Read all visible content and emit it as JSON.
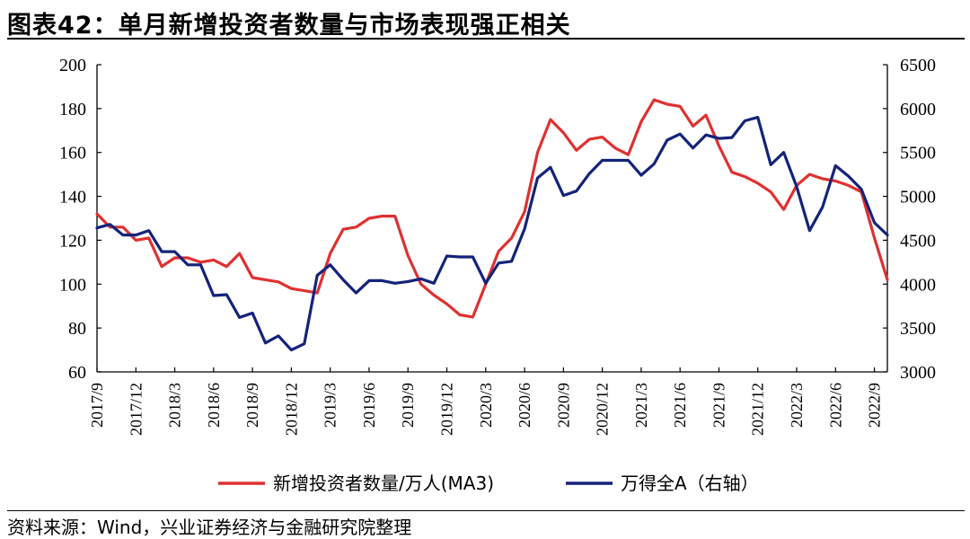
{
  "header": {
    "title": "图表42：单月新增投资者数量与市场表现强正相关"
  },
  "footer": {
    "source": "资料来源：Wind，兴业证券经济与金融研究院整理"
  },
  "chart_data": {
    "type": "line",
    "x": [
      "2017/9",
      "2017/10",
      "2017/11",
      "2017/12",
      "2018/1",
      "2018/2",
      "2018/3",
      "2018/4",
      "2018/5",
      "2018/6",
      "2018/7",
      "2018/8",
      "2018/9",
      "2018/10",
      "2018/11",
      "2018/12",
      "2019/1",
      "2019/2",
      "2019/3",
      "2019/4",
      "2019/5",
      "2019/6",
      "2019/7",
      "2019/8",
      "2019/9",
      "2019/10",
      "2019/11",
      "2019/12",
      "2020/1",
      "2020/2",
      "2020/3",
      "2020/4",
      "2020/5",
      "2020/6",
      "2020/7",
      "2020/8",
      "2020/9",
      "2020/10",
      "2020/11",
      "2020/12",
      "2021/1",
      "2021/2",
      "2021/3",
      "2021/4",
      "2021/5",
      "2021/6",
      "2021/7",
      "2021/8",
      "2021/9",
      "2021/10",
      "2021/11",
      "2021/12",
      "2022/1",
      "2022/2",
      "2022/3",
      "2022/4",
      "2022/5",
      "2022/6",
      "2022/7",
      "2022/8",
      "2022/9",
      "2022/10"
    ],
    "xticks": [
      "2017/9",
      "2017/12",
      "2018/3",
      "2018/6",
      "2018/9",
      "2018/12",
      "2019/3",
      "2019/6",
      "2019/9",
      "2019/12",
      "2020/3",
      "2020/6",
      "2020/9",
      "2020/12",
      "2021/3",
      "2021/6",
      "2021/9",
      "2021/12",
      "2022/3",
      "2022/6",
      "2022/9"
    ],
    "series": [
      {
        "name": "新增投资者数量/万人(MA3)",
        "axis": "left",
        "color": "#e03030",
        "values": [
          132,
          126,
          126,
          120,
          121,
          108,
          112,
          112,
          110,
          111,
          108,
          114,
          103,
          102,
          101,
          98,
          97,
          96,
          114,
          125,
          126,
          130,
          131,
          131,
          113,
          100,
          95,
          91,
          86,
          85,
          100,
          115,
          121,
          133,
          160,
          175,
          169,
          161,
          166,
          167,
          162,
          159,
          174,
          184,
          182,
          181,
          172,
          177,
          163,
          151,
          149,
          146,
          142,
          134,
          145,
          150,
          148,
          147,
          145,
          142,
          121,
          102
        ]
      },
      {
        "name": "万得全A（右轴）",
        "axis": "right",
        "color": "#14237a",
        "values": [
          4640,
          4680,
          4560,
          4560,
          4610,
          4370,
          4370,
          4220,
          4220,
          3870,
          3880,
          3620,
          3670,
          3330,
          3410,
          3250,
          3320,
          4100,
          4220,
          4050,
          3900,
          4040,
          4040,
          4010,
          4030,
          4060,
          4010,
          4320,
          4310,
          4310,
          4010,
          4240,
          4260,
          4630,
          5210,
          5330,
          5010,
          5060,
          5260,
          5410,
          5410,
          5410,
          5240,
          5370,
          5640,
          5710,
          5550,
          5700,
          5660,
          5670,
          5860,
          5900,
          5360,
          5500,
          5110,
          4610,
          4880,
          5350,
          5230,
          5080,
          4700,
          4560
        ]
      }
    ],
    "yaxis_left": {
      "min": 60,
      "max": 200,
      "ticks": [
        60,
        80,
        100,
        120,
        140,
        160,
        180,
        200
      ]
    },
    "yaxis_right": {
      "min": 3000,
      "max": 6500,
      "ticks": [
        3000,
        3500,
        4000,
        4500,
        5000,
        5500,
        6000,
        6500
      ]
    },
    "legend_position": "bottom"
  }
}
